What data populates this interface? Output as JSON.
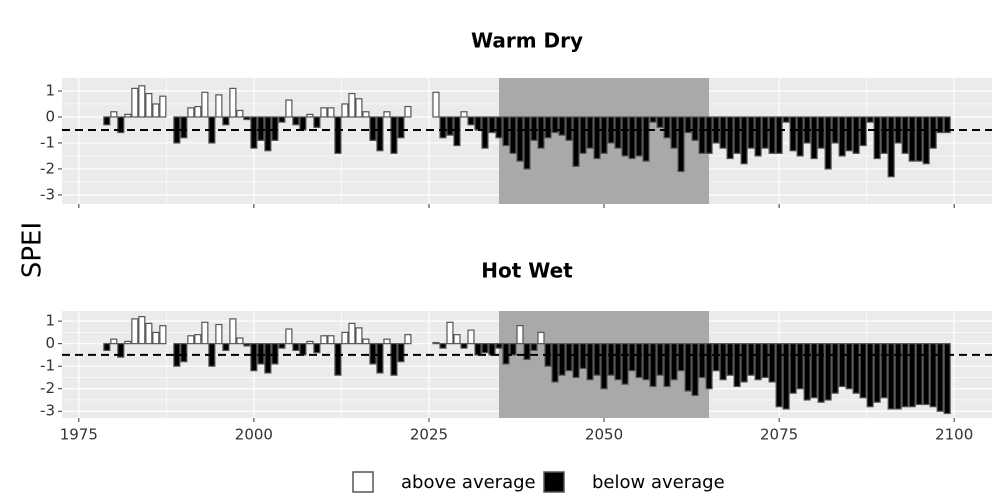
{
  "chart_data": [
    {
      "type": "bar",
      "title": "Warm Dry",
      "x": [
        1979,
        1980,
        1981,
        1982,
        1983,
        1984,
        1985,
        1986,
        1987,
        1988,
        1989,
        1990,
        1991,
        1992,
        1993,
        1994,
        1995,
        1996,
        1997,
        1998,
        1999,
        2000,
        2001,
        2002,
        2003,
        2004,
        2005,
        2006,
        2007,
        2008,
        2009,
        2010,
        2011,
        2012,
        2013,
        2014,
        2015,
        2016,
        2017,
        2018,
        2019,
        2020,
        2021,
        2022,
        2026,
        2027,
        2028,
        2029,
        2030,
        2031,
        2032,
        2033,
        2034,
        2035,
        2036,
        2037,
        2038,
        2039,
        2040,
        2041,
        2042,
        2043,
        2044,
        2045,
        2046,
        2047,
        2048,
        2049,
        2050,
        2051,
        2052,
        2053,
        2054,
        2055,
        2056,
        2057,
        2058,
        2059,
        2060,
        2061,
        2062,
        2063,
        2064,
        2065,
        2066,
        2067,
        2068,
        2069,
        2070,
        2071,
        2072,
        2073,
        2074,
        2075,
        2076,
        2077,
        2078,
        2079,
        2080,
        2081,
        2082,
        2083,
        2084,
        2085,
        2086,
        2087,
        2088,
        2089,
        2090,
        2091,
        2092,
        2093,
        2094,
        2095,
        2096,
        2097,
        2098,
        2099
      ],
      "values": [
        -0.3,
        0.2,
        -0.6,
        0.1,
        1.1,
        1.2,
        0.9,
        0.5,
        0.8,
        0,
        -1.0,
        -0.8,
        0.35,
        0.4,
        0.95,
        -1.0,
        0.85,
        -0.3,
        1.1,
        0.25,
        -0.1,
        -1.2,
        -0.9,
        -1.3,
        -0.9,
        -0.2,
        0.65,
        -0.3,
        -0.5,
        0.1,
        -0.4,
        0.35,
        0.35,
        -1.4,
        0.5,
        0.9,
        0.7,
        0.2,
        -0.9,
        -1.3,
        0.2,
        -1.4,
        -0.8,
        0.4,
        0.95,
        -0.8,
        -0.7,
        -1.1,
        0.2,
        -0.3,
        -0.5,
        -1.2,
        -0.6,
        -0.8,
        -1.1,
        -1.4,
        -1.7,
        -2.0,
        -0.9,
        -1.2,
        -0.8,
        -0.6,
        -0.7,
        -0.9,
        -1.9,
        -1.4,
        -1.2,
        -1.6,
        -1.4,
        -1.0,
        -1.2,
        -1.5,
        -1.6,
        -1.5,
        -1.7,
        -0.2,
        -0.4,
        -0.8,
        -1.2,
        -2.1,
        -0.6,
        -0.9,
        -1.4,
        -1.4,
        -1.0,
        -1.2,
        -1.6,
        -1.4,
        -1.8,
        -1.2,
        -1.5,
        -1.2,
        -1.4,
        -1.4,
        -0.2,
        -1.3,
        -1.5,
        -1.0,
        -1.6,
        -1.2,
        -2.0,
        -1.0,
        -1.5,
        -1.3,
        -1.4,
        -1.1,
        -0.2,
        -1.6,
        -1.4,
        -2.3,
        -1.0,
        -1.4,
        -1.7,
        -1.7,
        -1.8,
        -1.2,
        -0.6,
        -0.6
      ],
      "xlim": [
        1972.6,
        2105.4
      ],
      "ylim": [
        -3.35,
        1.5
      ],
      "xticks": [
        1975,
        2000,
        2025,
        2050,
        2075,
        2100
      ],
      "yticks": [
        -3,
        -2,
        -1,
        0,
        1
      ],
      "hline": -0.5,
      "shade": [
        2035,
        2065
      ],
      "grid": true
    },
    {
      "type": "bar",
      "title": "Hot Wet",
      "x": [
        1979,
        1980,
        1981,
        1982,
        1983,
        1984,
        1985,
        1986,
        1987,
        1988,
        1989,
        1990,
        1991,
        1992,
        1993,
        1994,
        1995,
        1996,
        1997,
        1998,
        1999,
        2000,
        2001,
        2002,
        2003,
        2004,
        2005,
        2006,
        2007,
        2008,
        2009,
        2010,
        2011,
        2012,
        2013,
        2014,
        2015,
        2016,
        2017,
        2018,
        2019,
        2020,
        2021,
        2022,
        2026,
        2027,
        2028,
        2029,
        2030,
        2031,
        2032,
        2033,
        2034,
        2035,
        2036,
        2037,
        2038,
        2039,
        2040,
        2041,
        2042,
        2043,
        2044,
        2045,
        2046,
        2047,
        2048,
        2049,
        2050,
        2051,
        2052,
        2053,
        2054,
        2055,
        2056,
        2057,
        2058,
        2059,
        2060,
        2061,
        2062,
        2063,
        2064,
        2065,
        2066,
        2067,
        2068,
        2069,
        2070,
        2071,
        2072,
        2073,
        2074,
        2075,
        2076,
        2077,
        2078,
        2079,
        2080,
        2081,
        2082,
        2083,
        2084,
        2085,
        2086,
        2087,
        2088,
        2089,
        2090,
        2091,
        2092,
        2093,
        2094,
        2095,
        2096,
        2097,
        2098,
        2099
      ],
      "values": [
        -0.3,
        0.2,
        -0.6,
        0.1,
        1.1,
        1.2,
        0.9,
        0.5,
        0.8,
        0,
        -1.0,
        -0.8,
        0.35,
        0.4,
        0.95,
        -1.0,
        0.85,
        -0.3,
        1.1,
        0.25,
        -0.1,
        -1.2,
        -0.9,
        -1.3,
        -0.9,
        -0.2,
        0.65,
        -0.3,
        -0.5,
        0.1,
        -0.4,
        0.35,
        0.35,
        -1.4,
        0.5,
        0.9,
        0.7,
        0.2,
        -0.9,
        -1.3,
        0.2,
        -1.4,
        -0.8,
        0.4,
        0.05,
        -0.2,
        0.95,
        0.4,
        -0.2,
        0.6,
        -0.5,
        -0.4,
        -0.5,
        -0.2,
        -0.9,
        -0.5,
        0.8,
        -0.7,
        -0.3,
        0.5,
        -1.0,
        -1.7,
        -1.4,
        -1.2,
        -1.5,
        -1.1,
        -1.6,
        -1.4,
        -2.0,
        -1.4,
        -1.6,
        -1.8,
        -1.2,
        -1.5,
        -1.6,
        -1.9,
        -1.4,
        -1.9,
        -1.6,
        -1.2,
        -2.1,
        -2.3,
        -1.5,
        -2.0,
        -1.2,
        -1.6,
        -1.4,
        -1.9,
        -1.7,
        -1.4,
        -1.6,
        -1.5,
        -1.7,
        -2.8,
        -2.9,
        -2.2,
        -2.0,
        -2.5,
        -2.4,
        -2.6,
        -2.5,
        -2.2,
        -1.9,
        -2.0,
        -2.2,
        -2.4,
        -2.8,
        -2.6,
        -2.4,
        -2.9,
        -2.9,
        -2.8,
        -2.8,
        -2.7,
        -2.7,
        -2.8,
        -3.0,
        -3.1
      ],
      "xlim": [
        1972.6,
        2105.4
      ],
      "ylim": [
        -3.3,
        1.45
      ],
      "xticks": [
        1975,
        2000,
        2025,
        2050,
        2075,
        2100
      ],
      "yticks": [
        -3,
        -2,
        -1,
        0,
        1
      ],
      "hline": -0.5,
      "shade": [
        2035,
        2065
      ],
      "grid": true
    }
  ],
  "ylabel": "SPEI",
  "legend": [
    {
      "name": "above average",
      "color": "#ffffff"
    },
    {
      "name": "below average",
      "color": "#000000"
    }
  ]
}
